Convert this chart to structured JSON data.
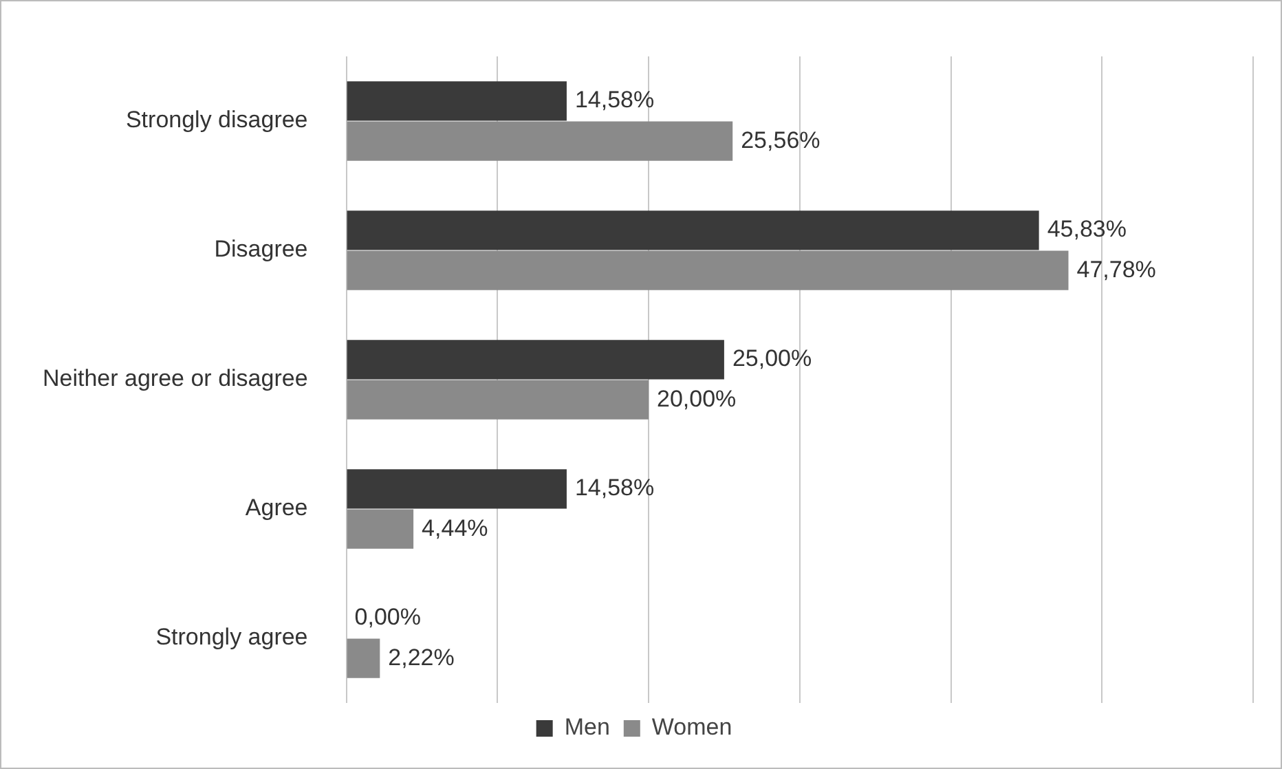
{
  "chart_data": {
    "type": "bar",
    "orientation": "horizontal",
    "categories": [
      "Strongly disagree",
      "Disagree",
      "Neither agree or disagree",
      "Agree",
      "Strongly agree"
    ],
    "series": [
      {
        "name": "Men",
        "color": "#3a3a3a",
        "values": [
          14.58,
          45.83,
          25.0,
          14.58,
          0.0
        ],
        "value_labels": [
          "14,58%",
          "45,83%",
          "25,00%",
          "14,58%",
          "0,00%"
        ]
      },
      {
        "name": "Women",
        "color": "#8a8a8a",
        "values": [
          25.56,
          47.78,
          20.0,
          4.44,
          2.22
        ],
        "value_labels": [
          "25,56%",
          "47,78%",
          "20,00%",
          "4,44%",
          "2,22%"
        ]
      }
    ],
    "xlim": [
      0,
      60
    ],
    "xticks": [
      {
        "value": 0,
        "label": null
      },
      {
        "value": 10,
        "label": null
      },
      {
        "value": 20,
        "label": null
      },
      {
        "value": 30,
        "label": null
      },
      {
        "value": 40,
        "label": null
      },
      {
        "value": 50,
        "label": null
      },
      {
        "value": 60,
        "label": null
      }
    ],
    "grid": "x",
    "legend": "bottom",
    "tick_labels": "y"
  }
}
